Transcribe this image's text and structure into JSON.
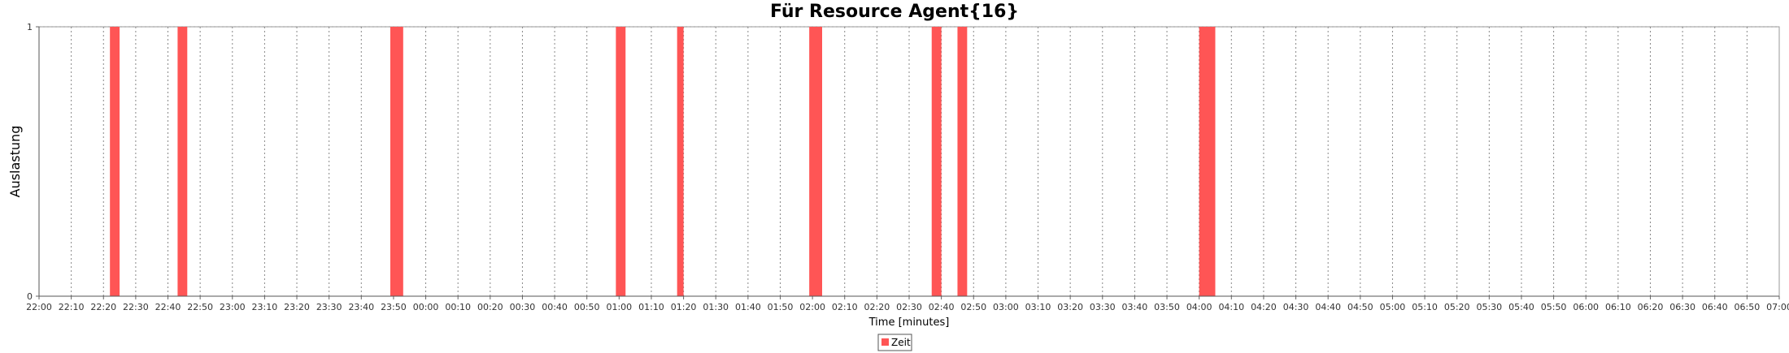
{
  "chart_data": {
    "type": "bar",
    "title": "Für Resource Agent{16}",
    "xlabel": "Time [minutes]",
    "ylabel": "Auslastung",
    "x_range_minutes": [
      0,
      540
    ],
    "ylim": [
      0,
      1
    ],
    "y_ticks": [
      "0",
      "1"
    ],
    "x_ticks": [
      "22:00",
      "22:10",
      "22:20",
      "22:30",
      "22:40",
      "22:50",
      "23:00",
      "23:10",
      "23:20",
      "23:30",
      "23:40",
      "23:50",
      "00:00",
      "00:10",
      "00:20",
      "00:30",
      "00:40",
      "00:50",
      "01:00",
      "01:10",
      "01:20",
      "01:30",
      "01:40",
      "01:50",
      "02:00",
      "02:10",
      "02:20",
      "02:30",
      "02:40",
      "02:50",
      "03:00",
      "03:10",
      "03:20",
      "03:30",
      "03:40",
      "03:50",
      "04:00",
      "04:10",
      "04:20",
      "04:30",
      "04:40",
      "04:50",
      "05:00",
      "05:10",
      "05:20",
      "05:30",
      "05:40",
      "05:50",
      "06:00",
      "06:10",
      "06:20",
      "06:30",
      "06:40",
      "06:50",
      "07:00"
    ],
    "grid": true,
    "legend_position": "bottom-center",
    "series": [
      {
        "name": "Zeit",
        "color": "#ff5555",
        "bars": [
          {
            "start": "22:22",
            "end": "22:25",
            "value": 1
          },
          {
            "start": "22:43",
            "end": "22:46",
            "value": 1
          },
          {
            "start": "23:49",
            "end": "23:53",
            "value": 1
          },
          {
            "start": "00:59",
            "end": "01:02",
            "value": 1
          },
          {
            "start": "01:18",
            "end": "01:20",
            "value": 1
          },
          {
            "start": "01:59",
            "end": "02:03",
            "value": 1
          },
          {
            "start": "02:37",
            "end": "02:40",
            "value": 1
          },
          {
            "start": "02:45",
            "end": "02:48",
            "value": 1
          },
          {
            "start": "04:00",
            "end": "04:05",
            "value": 1
          }
        ]
      }
    ]
  }
}
